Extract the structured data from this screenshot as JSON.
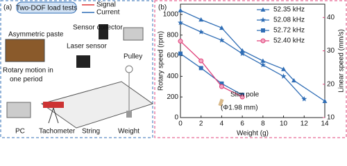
{
  "panel_a": {
    "label": "(a)",
    "title": "Two-DOF load tests",
    "legend": [
      "Signal",
      "Current"
    ],
    "labels": [
      "Asymmetric paste",
      "Sensor collector",
      "Laser sensor",
      "Pulley",
      "Rotary motion in",
      "one period",
      "PC",
      "Tachometer",
      "String",
      "Weight"
    ]
  },
  "chart_data": {
    "type": "line",
    "panel_label": "(b)",
    "x_label": "Weight (g)",
    "y_label": "Rotary speed (rpm)",
    "y2_label": "Linear speed (mm/s)",
    "xlim": [
      0,
      14
    ],
    "xticks": [
      0,
      2,
      4,
      6,
      8,
      10,
      12,
      14
    ],
    "ylim": [
      0,
      1100
    ],
    "yticks": [
      0,
      200,
      400,
      600,
      800,
      1000
    ],
    "y2lim": [
      10,
      44
    ],
    "y2ticks": [
      10,
      20,
      30,
      40
    ],
    "y2_color": "#e0407a",
    "legend": "upper right",
    "series": [
      {
        "name": "52.35 kHz",
        "color": "#2f6db5",
        "marker": "triangle",
        "x": [
          0,
          2,
          4,
          6,
          8,
          10,
          11,
          14
        ],
        "values": [
          1040,
          950,
          870,
          650,
          550,
          470,
          360,
          160
        ]
      },
      {
        "name": "52.08 kHz",
        "color": "#2f6db5",
        "marker": "star",
        "x": [
          0,
          2,
          4,
          6,
          8,
          10,
          12
        ],
        "values": [
          920,
          830,
          750,
          620,
          510,
          400,
          180
        ]
      },
      {
        "name": "52.72 kHz",
        "color": "#2f6db5",
        "marker": "square",
        "x": [
          0,
          2,
          4,
          6
        ],
        "values": [
          620,
          480,
          330,
          220
        ]
      },
      {
        "name": "52.40 kHz",
        "color": "#e0407a",
        "marker": "circle",
        "axis": "y2",
        "x": [
          0,
          2,
          4,
          6
        ],
        "values": [
          32.9,
          27,
          19.3,
          16.2
        ]
      }
    ],
    "annotations": [
      "Slim pole",
      "(Φ1.98 mm)"
    ]
  }
}
